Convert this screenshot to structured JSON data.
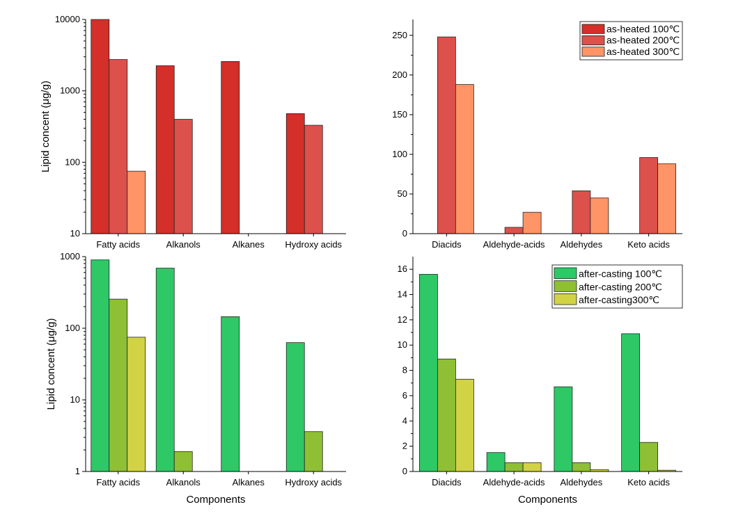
{
  "chart_data": [
    {
      "id": "top-left",
      "type": "bar",
      "ylabel": "Lipid concent (μg/g)",
      "xlabel": "",
      "yscale": "log",
      "ylim": [
        10,
        10000
      ],
      "yticks": [
        10,
        100,
        1000,
        10000
      ],
      "ytick_labels": [
        "10",
        "100",
        "1000",
        "10000"
      ],
      "categories": [
        "Fatty acids",
        "Alkanols",
        "Alkanes",
        "Hydroxy acids"
      ],
      "colors": [
        "#d42f28",
        "#dc514b",
        "#ff9466"
      ],
      "series": [
        {
          "values": [
            11000,
            2250,
            2580,
            480
          ]
        },
        {
          "values": [
            2750,
            400,
            null,
            330
          ]
        },
        {
          "values": [
            75,
            null,
            null,
            null
          ]
        }
      ]
    },
    {
      "id": "top-right",
      "type": "bar",
      "ylabel": "",
      "xlabel": "",
      "yscale": "linear",
      "ylim": [
        0,
        270
      ],
      "yticks": [
        0,
        50,
        100,
        150,
        200,
        250
      ],
      "ytick_labels": [
        "0",
        "50",
        "100",
        "150",
        "200",
        "250"
      ],
      "categories": [
        "Diacids",
        "Aldehyde-acids",
        "Aldehydes",
        "Keto acids"
      ],
      "colors": [
        "#d42f28",
        "#dc514b",
        "#ff9466"
      ],
      "legend": "top-right",
      "series": [
        {
          "name": "as-heated 100℃",
          "values": [
            null,
            null,
            null,
            null
          ]
        },
        {
          "name": "as-heated 200℃",
          "values": [
            248,
            8,
            54,
            96
          ]
        },
        {
          "name": "as-heated 300℃",
          "values": [
            188,
            27,
            45,
            88
          ]
        }
      ]
    },
    {
      "id": "bottom-left",
      "type": "bar",
      "ylabel": "Lipid concent (μg/g)",
      "xlabel": "Components",
      "yscale": "log",
      "ylim": [
        1,
        1000
      ],
      "yticks": [
        1,
        10,
        100,
        1000
      ],
      "ytick_labels": [
        "1",
        "10",
        "100",
        "1000"
      ],
      "categories": [
        "Fatty acids",
        "Alkanols",
        "Alkanes",
        "Hydroxy acids"
      ],
      "colors": [
        "#2ec866",
        "#8fbf35",
        "#d2d245"
      ],
      "series": [
        {
          "values": [
            900,
            690,
            145,
            63
          ]
        },
        {
          "values": [
            255,
            1.9,
            null,
            3.6
          ]
        },
        {
          "values": [
            75,
            null,
            null,
            null
          ]
        }
      ]
    },
    {
      "id": "bottom-right",
      "type": "bar",
      "ylabel": "",
      "xlabel": "Components",
      "yscale": "linear",
      "ylim": [
        0,
        17
      ],
      "yticks": [
        0,
        2,
        4,
        6,
        8,
        10,
        12,
        14,
        16
      ],
      "ytick_labels": [
        "0",
        "2",
        "4",
        "6",
        "8",
        "10",
        "12",
        "14",
        "16"
      ],
      "categories": [
        "Diacids",
        "Aldehyde-acids",
        "Aldehydes",
        "Keto acids"
      ],
      "colors": [
        "#2ec866",
        "#8fbf35",
        "#d2d245"
      ],
      "legend": "top-right",
      "series": [
        {
          "name": "after-casting 100℃",
          "values": [
            15.6,
            1.5,
            6.7,
            10.9
          ]
        },
        {
          "name": "after-casting 200℃",
          "values": [
            8.9,
            0.7,
            0.7,
            2.3
          ]
        },
        {
          "name": "after-casting300℃",
          "values": [
            7.3,
            0.7,
            0.15,
            0.1
          ]
        }
      ]
    }
  ]
}
